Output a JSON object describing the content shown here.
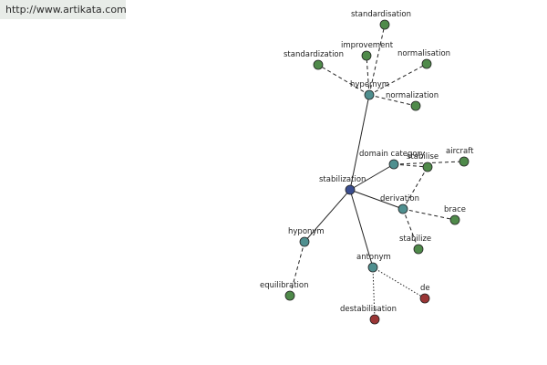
{
  "source_link": "http://www.artikata.com",
  "colors": {
    "center": "#3a4d8f",
    "relation": "#4f8f8f",
    "word": "#4f8a4a",
    "opposite": "#9a3535",
    "edge": "#222222"
  },
  "nodes": [
    {
      "id": "stabilization",
      "label": "stabilization",
      "kind": "center"
    },
    {
      "id": "hypernym",
      "label": "hypernym",
      "kind": "relation"
    },
    {
      "id": "domain_category",
      "label": "domain category",
      "kind": "relation"
    },
    {
      "id": "derivation",
      "label": "derivation",
      "kind": "relation"
    },
    {
      "id": "hyponym",
      "label": "hyponym",
      "kind": "relation"
    },
    {
      "id": "antonym",
      "label": "antonym",
      "kind": "relation"
    },
    {
      "id": "standardisation",
      "label": "standardisation",
      "kind": "word"
    },
    {
      "id": "improvement",
      "label": "improvement",
      "kind": "word"
    },
    {
      "id": "normalisation",
      "label": "normalisation",
      "kind": "word"
    },
    {
      "id": "standardization",
      "label": "standardization",
      "kind": "word"
    },
    {
      "id": "normalization",
      "label": "normalization",
      "kind": "word"
    },
    {
      "id": "stabilise",
      "label": "stabilise",
      "kind": "word"
    },
    {
      "id": "aircraft",
      "label": "aircraft",
      "kind": "word"
    },
    {
      "id": "brace",
      "label": "brace",
      "kind": "word"
    },
    {
      "id": "stabilize",
      "label": "stabilize",
      "kind": "word"
    },
    {
      "id": "equilibration",
      "label": "equilibration",
      "kind": "word"
    },
    {
      "id": "de",
      "label": "de",
      "kind": "opposite"
    },
    {
      "id": "destabilisation",
      "label": "destabilisation",
      "kind": "opposite"
    }
  ],
  "edges": [
    {
      "from": "stabilization",
      "to": "hypernym",
      "style": "solid"
    },
    {
      "from": "stabilization",
      "to": "domain_category",
      "style": "solid"
    },
    {
      "from": "stabilization",
      "to": "derivation",
      "style": "solid"
    },
    {
      "from": "stabilization",
      "to": "hyponym",
      "style": "solid"
    },
    {
      "from": "stabilization",
      "to": "antonym",
      "style": "solid"
    },
    {
      "from": "hypernym",
      "to": "standardisation",
      "style": "dashed"
    },
    {
      "from": "hypernym",
      "to": "improvement",
      "style": "dashed"
    },
    {
      "from": "hypernym",
      "to": "normalisation",
      "style": "dashed"
    },
    {
      "from": "hypernym",
      "to": "standardization",
      "style": "dashed"
    },
    {
      "from": "hypernym",
      "to": "normalization",
      "style": "dashed"
    },
    {
      "from": "domain_category",
      "to": "stabilise",
      "style": "dashed"
    },
    {
      "from": "domain_category",
      "to": "aircraft",
      "style": "dashed"
    },
    {
      "from": "derivation",
      "to": "stabilise",
      "style": "dashed"
    },
    {
      "from": "derivation",
      "to": "brace",
      "style": "dashed"
    },
    {
      "from": "derivation",
      "to": "stabilize",
      "style": "dashed"
    },
    {
      "from": "hyponym",
      "to": "equilibration",
      "style": "dashed"
    },
    {
      "from": "antonym",
      "to": "de",
      "style": "dotted"
    },
    {
      "from": "antonym",
      "to": "destabilisation",
      "style": "dotted"
    }
  ]
}
